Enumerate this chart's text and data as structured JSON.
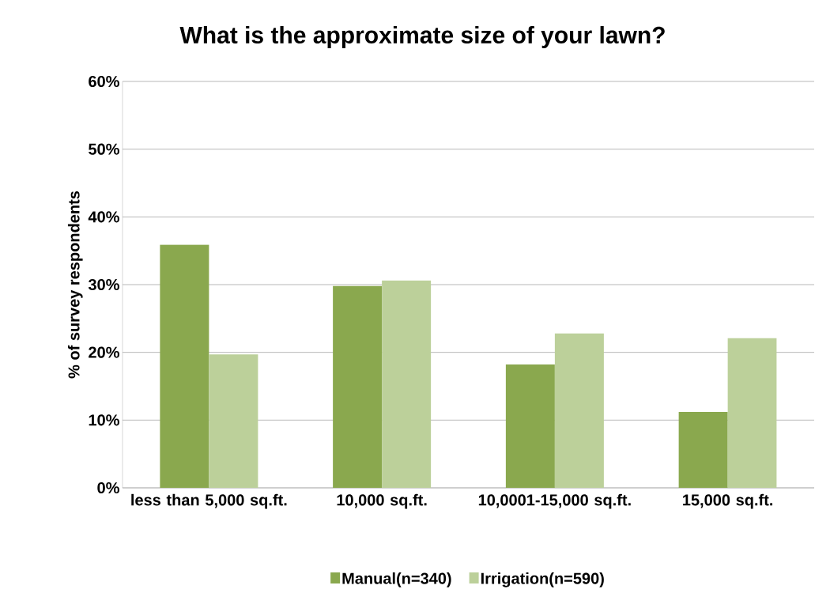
{
  "chart_data": {
    "type": "bar",
    "title": "What is the approximate size of your lawn?",
    "ylabel": "% of survey respondents",
    "categories": [
      "less than 5,000 sq.ft.",
      "10,000 sq.ft.",
      "10,0001-15,000 sq.ft.",
      "15,000 sq.ft."
    ],
    "series": [
      {
        "name": "Manual(n=340)",
        "color": "#8aa84e",
        "values": [
          35.9,
          29.8,
          18.2,
          11.2
        ]
      },
      {
        "name": "Irrigation(n=590)",
        "color": "#bcd09a",
        "values": [
          19.7,
          30.6,
          22.8,
          22.1
        ]
      }
    ],
    "ylim": [
      0,
      60
    ],
    "yticks": [
      {
        "value": 0,
        "label": "0%"
      },
      {
        "value": 10,
        "label": "10%"
      },
      {
        "value": 20,
        "label": "20%"
      },
      {
        "value": 30,
        "label": "30%"
      },
      {
        "value": 40,
        "label": "40%"
      },
      {
        "value": 50,
        "label": "50%"
      },
      {
        "value": 60,
        "label": "60%"
      }
    ],
    "grid": "y",
    "legend": "bottom"
  }
}
